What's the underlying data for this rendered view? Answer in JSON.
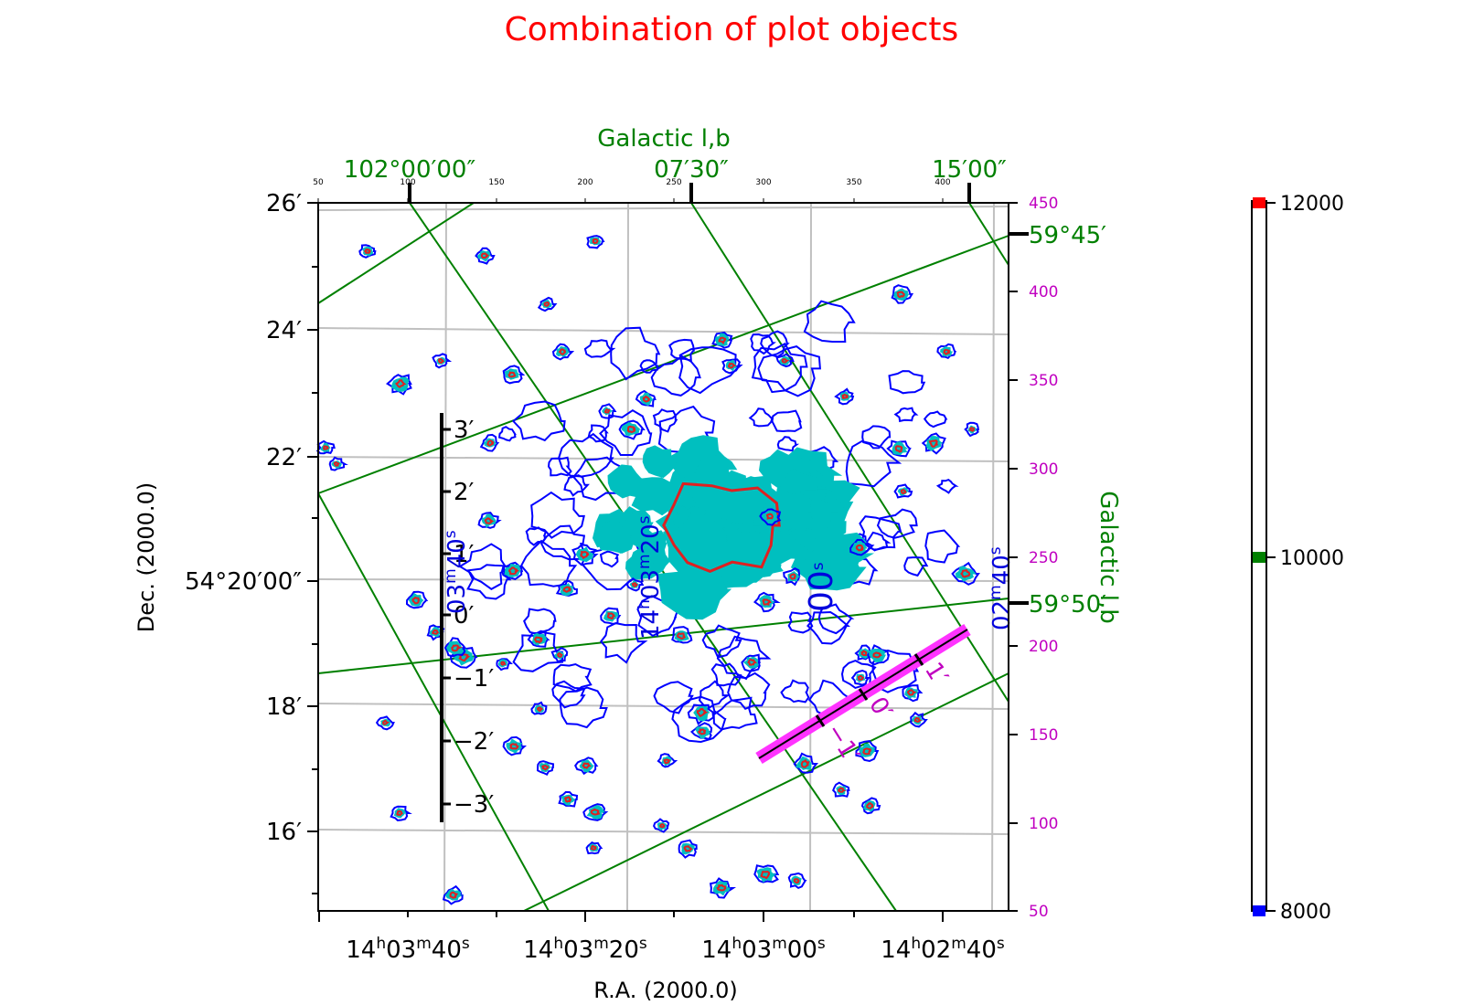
{
  "title": "Combination of plot objects",
  "colors": {
    "title": "#ff0000",
    "galactic": "#008000",
    "pixel": "#c000c0",
    "contour_low": "#0000ff",
    "contour_mid": "#00bfbf",
    "contour_high": "#e02020",
    "grid": "#c0c0c0",
    "ruler": "#ff33ff",
    "cbar_low": "#0000ff",
    "cbar_mid": "#008000",
    "cbar_high": "#ff0000"
  },
  "labels": {
    "xlabel": "R.A. (2000.0)",
    "ylabel": "Dec. (2000.0)",
    "top_label": "Galactic l,b",
    "right_label": "Galactic l,b"
  },
  "chart_data": {
    "type": "contour",
    "ra_ticks": [
      "14h03m40s",
      "14h03m20s",
      "14h03m00s",
      "14h02m40s"
    ],
    "ra_tick_parts": [
      {
        "h": "14",
        "m": "03",
        "s": "40"
      },
      {
        "h": "14",
        "m": "03",
        "s": "20"
      },
      {
        "h": "14",
        "m": "03",
        "s": "00"
      },
      {
        "h": "14",
        "m": "02",
        "s": "40"
      }
    ],
    "dec_ticks": [
      "26′",
      "24′",
      "22′",
      "54°20′00″",
      "18′",
      "16′"
    ],
    "dec_values": [
      26,
      24,
      22,
      20,
      18,
      16
    ],
    "gal_top_ticks": [
      "102°00′00″",
      "07′30″",
      "15′00″"
    ],
    "gal_right_ticks": [
      "59°45′",
      "59°50′"
    ],
    "pixel_x_ticks": [
      50,
      100,
      150,
      200,
      250,
      300,
      350,
      400
    ],
    "pixel_y_ticks": [
      450,
      400,
      350,
      300,
      250,
      200,
      150,
      100,
      50
    ],
    "inset_ra_labels": [
      {
        "h": "14",
        "m": "03",
        "s": "20"
      },
      {
        "h": "",
        "m": "03",
        "s": "40"
      },
      {
        "h": "",
        "m": "02",
        "s": "40"
      },
      {
        "h": "",
        "m": "",
        "s": "00"
      }
    ],
    "vertical_ruler_ticks": [
      "3′",
      "2′",
      "1′",
      "0′",
      "−1′",
      "−2′",
      "−3′"
    ],
    "ruler_ticks": [
      "1′",
      "0′",
      "−1′"
    ],
    "contour_levels": [
      8000,
      10000,
      12000
    ],
    "colorbar_ticks": [
      "12000",
      "10000",
      "8000"
    ],
    "grid": true
  }
}
